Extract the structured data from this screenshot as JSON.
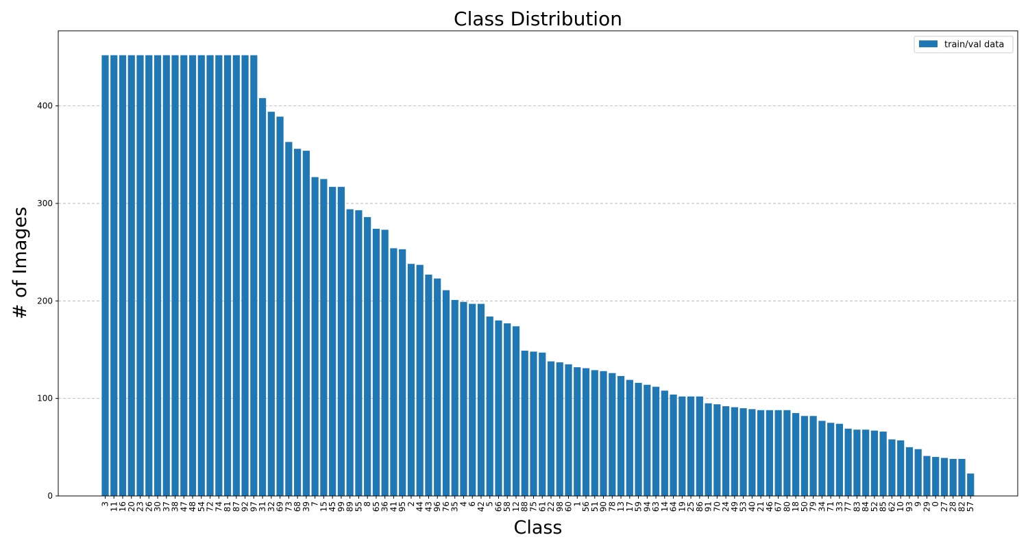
{
  "chart_data": {
    "type": "bar",
    "title": "Class Distribution",
    "xlabel": "Class",
    "ylabel": "# of Images",
    "ylim": [
      0,
      477
    ],
    "yticks": [
      0,
      100,
      200,
      300,
      400
    ],
    "grid": "y-dashed",
    "legend_position": "top-right",
    "bar_color": "#1f77b4",
    "series": [
      {
        "name": "train/val data",
        "categories": [
          "3",
          "11",
          "16",
          "20",
          "23",
          "26",
          "30",
          "37",
          "38",
          "47",
          "48",
          "54",
          "72",
          "74",
          "81",
          "87",
          "92",
          "97",
          "31",
          "32",
          "69",
          "73",
          "68",
          "39",
          "7",
          "15",
          "45",
          "99",
          "89",
          "55",
          "8",
          "65",
          "36",
          "41",
          "95",
          "2",
          "44",
          "43",
          "96",
          "76",
          "35",
          "4",
          "6",
          "42",
          "5",
          "66",
          "58",
          "12",
          "88",
          "75",
          "61",
          "22",
          "98",
          "60",
          "1",
          "56",
          "51",
          "90",
          "78",
          "13",
          "17",
          "59",
          "94",
          "63",
          "14",
          "64",
          "19",
          "25",
          "86",
          "91",
          "70",
          "24",
          "49",
          "53",
          "40",
          "21",
          "46",
          "67",
          "80",
          "18",
          "50",
          "79",
          "34",
          "71",
          "33",
          "77",
          "83",
          "84",
          "52",
          "85",
          "62",
          "10",
          "93",
          "9",
          "29",
          "0",
          "27",
          "28",
          "82",
          "57"
        ],
        "values": [
          452,
          452,
          452,
          452,
          452,
          452,
          452,
          452,
          452,
          452,
          452,
          452,
          452,
          452,
          452,
          452,
          452,
          452,
          408,
          394,
          389,
          363,
          356,
          354,
          327,
          325,
          317,
          317,
          294,
          293,
          286,
          274,
          273,
          254,
          253,
          238,
          237,
          227,
          223,
          211,
          201,
          199,
          197,
          197,
          184,
          180,
          177,
          174,
          149,
          148,
          147,
          138,
          137,
          135,
          132,
          131,
          129,
          128,
          126,
          123,
          119,
          116,
          114,
          112,
          108,
          104,
          102,
          102,
          102,
          95,
          94,
          92,
          91,
          90,
          89,
          88,
          88,
          88,
          88,
          85,
          82,
          82,
          77,
          75,
          74,
          69,
          68,
          68,
          67,
          66,
          58,
          57,
          50,
          48,
          41,
          40,
          39,
          38,
          38,
          23
        ]
      }
    ]
  }
}
